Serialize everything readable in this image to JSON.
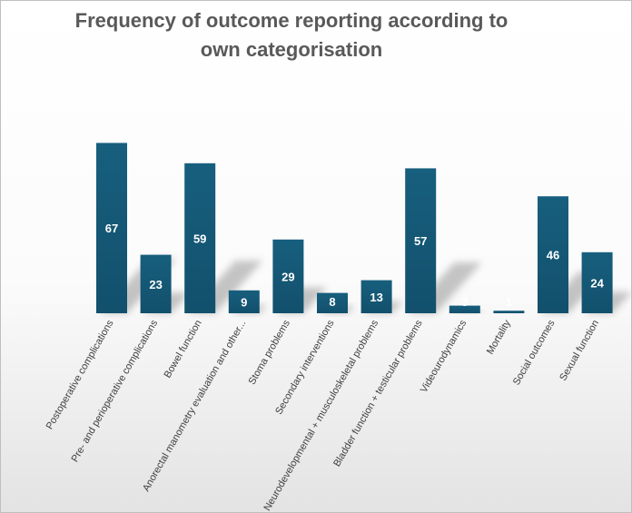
{
  "chart_data": {
    "type": "bar",
    "title_lines": [
      "Frequency of outcome reporting according to",
      "own categorisation"
    ],
    "categories": [
      "Postoperative complications",
      "Pre- and perioperative complications",
      "Bowel function",
      "Anorectal manometry evaluation and other...",
      "Stoma problems",
      "Secondary interventions",
      "Neurodevelopmental + musculoskeletal problems",
      "Bladder function + testicular problems",
      "Videourodynamics",
      "Mortality",
      "Social outcomes",
      "Sexual function"
    ],
    "values": [
      67,
      23,
      59,
      9,
      29,
      8,
      13,
      57,
      3,
      1,
      46,
      24
    ],
    "ylim": [
      0,
      75
    ],
    "xlabel": "",
    "ylabel": "",
    "grid": false,
    "legend": "none",
    "colors": {
      "bar_top": "#175f7e",
      "bar_bottom": "#12506c",
      "label": "#ffffff"
    }
  }
}
